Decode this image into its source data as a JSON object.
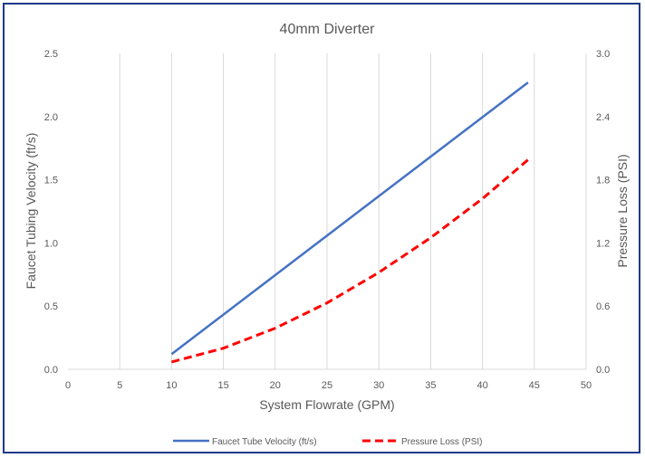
{
  "chart_data": {
    "type": "line",
    "title": "40mm Diverter",
    "xlabel": "System Flowrate (GPM)",
    "ylabel": "Faucet Tubing Velocity (ft/s)",
    "y2label": "Pressure Loss (PSI)",
    "xlim": [
      0,
      50
    ],
    "ylim": [
      0,
      2.5
    ],
    "y2lim": [
      0,
      3.0
    ],
    "x_ticks": [
      0,
      5,
      10,
      15,
      20,
      25,
      30,
      35,
      40,
      45,
      50
    ],
    "x_tick_labels": [
      "0",
      "5",
      "10",
      "15",
      "20",
      "25",
      "30",
      "35",
      "40",
      "45",
      "50"
    ],
    "y_ticks": [
      0,
      0.5,
      1.0,
      1.5,
      2.0,
      2.5
    ],
    "y_tick_labels": [
      "0.0",
      "0.5",
      "1.0",
      "1.5",
      "2.0",
      "2.5"
    ],
    "y2_ticks": [
      0,
      0.6,
      1.2,
      1.8,
      2.4,
      3.0
    ],
    "y2_tick_labels": [
      "0.0",
      "0.6",
      "1.2",
      "1.8",
      "2.4",
      "3.0"
    ],
    "grid": "vertical",
    "legend_position": "bottom",
    "series": [
      {
        "name": "Faucet Tube Velocity (ft/s)",
        "axis": "left",
        "color": "#4472c4",
        "style": "solid",
        "x": [
          10,
          44.4
        ],
        "y": [
          0.12,
          2.27
        ]
      },
      {
        "name": "Pressure Loss (PSI)",
        "axis": "right",
        "color": "#ff0000",
        "style": "dashed",
        "x": [
          10,
          15,
          20,
          25,
          30,
          35,
          40,
          44.4
        ],
        "y": [
          0.07,
          0.2,
          0.39,
          0.63,
          0.92,
          1.25,
          1.62,
          1.99
        ]
      }
    ]
  }
}
